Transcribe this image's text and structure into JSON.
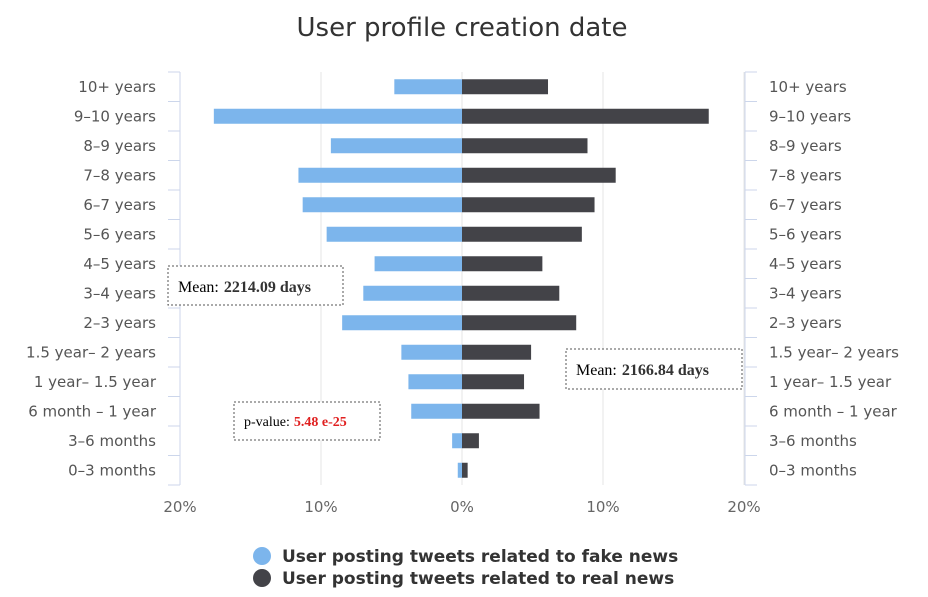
{
  "chart_data": {
    "type": "bar",
    "orientation": "horizontal-butterfly",
    "title": "User profile creation date",
    "categories": [
      "10+ years",
      "9–10 years",
      "8–9 years",
      "7–8 years",
      "6–7 years",
      "5–6 years",
      "4–5 years",
      "3–4 years",
      "2–3 years",
      "1.5 year– 2 years",
      "1 year– 1.5 year",
      "6 month – 1 year",
      "3–6 months",
      "0–3 months"
    ],
    "series": [
      {
        "name": "User posting tweets related to fake news",
        "side": "left",
        "color": "#7cb5ec",
        "values": [
          4.8,
          17.6,
          9.3,
          11.6,
          11.3,
          9.6,
          6.2,
          7.0,
          8.5,
          4.3,
          3.8,
          3.6,
          0.7,
          0.3
        ]
      },
      {
        "name": "User posting tweets related to real news",
        "side": "right",
        "color": "#434348",
        "values": [
          6.1,
          17.5,
          8.9,
          10.9,
          9.4,
          8.5,
          5.7,
          6.9,
          8.1,
          4.9,
          4.4,
          5.5,
          1.2,
          0.4
        ]
      }
    ],
    "xlim": [
      -20,
      20
    ],
    "xticks": [
      "20%",
      "10%",
      "0%",
      "10%",
      "20%"
    ],
    "legend_position": "bottom",
    "grid": true,
    "annotations": {
      "mean_fake": {
        "label": "Mean:",
        "value": "2214.09 days"
      },
      "mean_real": {
        "label": "Mean:",
        "value": "2166.84 days"
      },
      "pvalue": {
        "label": "p-value:",
        "value": "5.48 e-25"
      }
    }
  }
}
